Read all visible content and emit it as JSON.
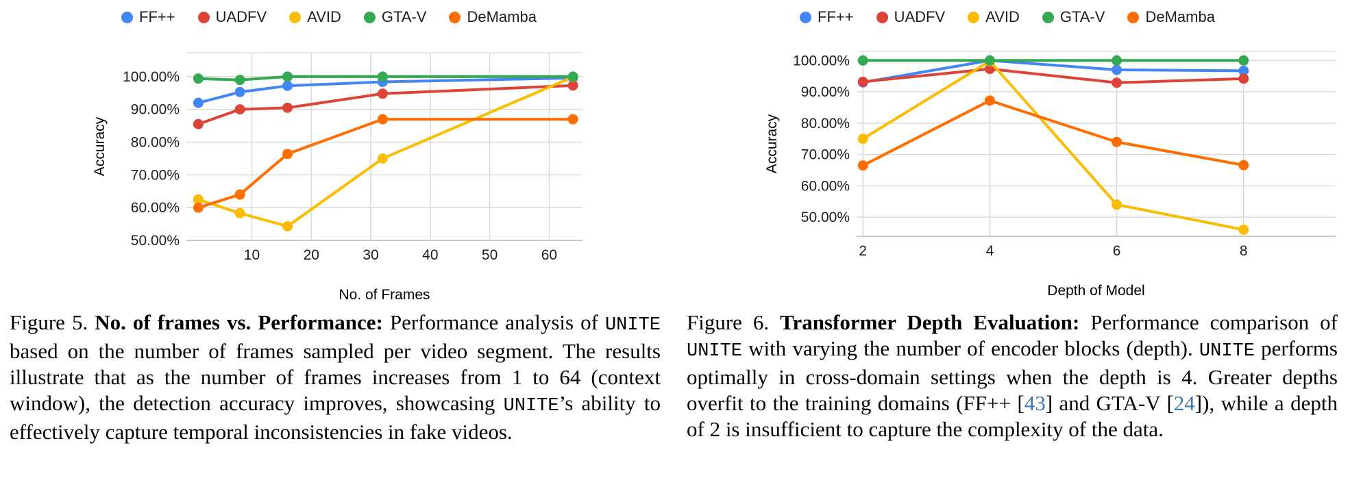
{
  "chart_data": [
    {
      "type": "line",
      "title": "",
      "xlabel": "No. of Frames",
      "ylabel": "Accuracy",
      "x": [
        1,
        8,
        16,
        32,
        64
      ],
      "series": [
        {
          "name": "FF++",
          "color": "#4285f4",
          "values": [
            92.0,
            95.3,
            97.2,
            98.4,
            99.6
          ]
        },
        {
          "name": "UADFV",
          "color": "#db4437",
          "values": [
            85.5,
            90.0,
            90.5,
            94.8,
            97.3
          ]
        },
        {
          "name": "AVID",
          "color": "#fbbc04",
          "values": [
            62.5,
            58.3,
            54.3,
            75.0,
            99.9
          ]
        },
        {
          "name": "GTA-V",
          "color": "#34a853",
          "values": [
            99.4,
            99.0,
            100.0,
            100.0,
            100.0
          ]
        },
        {
          "name": "DeMamba",
          "color": "#ff6d01",
          "values": [
            60.0,
            64.0,
            76.4,
            87.0,
            87.0
          ]
        }
      ],
      "xlim": [
        -1,
        65.6
      ],
      "ylim": [
        50,
        107.3
      ],
      "xticks": [
        10,
        20,
        30,
        40,
        50,
        60
      ],
      "xtick_labels": [
        "10",
        "20",
        "30",
        "40",
        "50",
        "60"
      ],
      "yticks": [
        50,
        60,
        70,
        80,
        90,
        100
      ],
      "ytick_labels": [
        "50.00%",
        "60.00%",
        "70.00%",
        "80.00%",
        "90.00%",
        "100.00%"
      ],
      "grid": true,
      "legend_position": "top"
    },
    {
      "type": "line",
      "title": "",
      "xlabel": "Depth of Model",
      "ylabel": "Accuracy",
      "x": [
        2,
        4,
        6,
        8
      ],
      "series": [
        {
          "name": "FF++",
          "color": "#4285f4",
          "values": [
            93.0,
            100.0,
            97.0,
            96.7
          ]
        },
        {
          "name": "UADFV",
          "color": "#db4437",
          "values": [
            93.2,
            97.3,
            92.9,
            94.2
          ]
        },
        {
          "name": "AVID",
          "color": "#fbbc04",
          "values": [
            75.0,
            99.8,
            54.0,
            46.0
          ]
        },
        {
          "name": "GTA-V",
          "color": "#34a853",
          "values": [
            100.0,
            100.0,
            100.0,
            100.0
          ]
        },
        {
          "name": "DeMamba",
          "color": "#ff6d01",
          "values": [
            66.5,
            87.2,
            74.0,
            66.6
          ]
        }
      ],
      "xlim": [
        1.9,
        9.45
      ],
      "ylim": [
        43.9,
        102.9
      ],
      "xticks": [
        2,
        4,
        6,
        8
      ],
      "xtick_labels": [
        "2",
        "4",
        "6",
        "8"
      ],
      "yticks": [
        50,
        60,
        70,
        80,
        90,
        100
      ],
      "ytick_labels": [
        "50.00%",
        "60.00%",
        "70.00%",
        "80.00%",
        "90.00%",
        "100.00%"
      ],
      "grid": true,
      "legend_position": "top"
    }
  ],
  "captions": {
    "fig5": {
      "segments": [
        {
          "text": "Figure 5. ",
          "style": "normal"
        },
        {
          "text": "No. of frames vs. Performance:",
          "style": "bold"
        },
        {
          "text": " Performance analysis of ",
          "style": "normal"
        },
        {
          "text": "UNITE",
          "style": "mono"
        },
        {
          "text": " based on the number of frames sampled per video segment. The results illustrate that as the number of frames increases from 1 to 64 (context window), the detection accuracy improves, showcasing ",
          "style": "normal"
        },
        {
          "text": "UNITE",
          "style": "mono"
        },
        {
          "text": "’s ability to effectively capture temporal inconsistencies in fake videos.",
          "style": "normal"
        }
      ]
    },
    "fig6": {
      "segments": [
        {
          "text": "Figure 6. ",
          "style": "normal"
        },
        {
          "text": "Transformer Depth Evaluation:",
          "style": "bold"
        },
        {
          "text": " Performance comparison of ",
          "style": "normal"
        },
        {
          "text": "UNITE",
          "style": "mono"
        },
        {
          "text": " with varying the number of encoder blocks (depth). ",
          "style": "normal"
        },
        {
          "text": "UNITE",
          "style": "mono"
        },
        {
          "text": " performs optimally in cross-domain settings when the depth is 4. Greater depths overfit to the training domains (FF++ [",
          "style": "normal"
        },
        {
          "text": "43",
          "style": "cite"
        },
        {
          "text": "] and GTA-V [",
          "style": "normal"
        },
        {
          "text": "24",
          "style": "cite"
        },
        {
          "text": "]), while a depth of 2 is insufficient to capture the complexity of the data.",
          "style": "normal"
        }
      ]
    }
  },
  "colors": {
    "grid": "#dadada",
    "citation_link": "#3c78b4",
    "series_blue": "#4285f4",
    "series_red": "#db4437",
    "series_yellow": "#fbbc04",
    "series_green": "#34a853",
    "series_orange": "#ff6d01"
  }
}
